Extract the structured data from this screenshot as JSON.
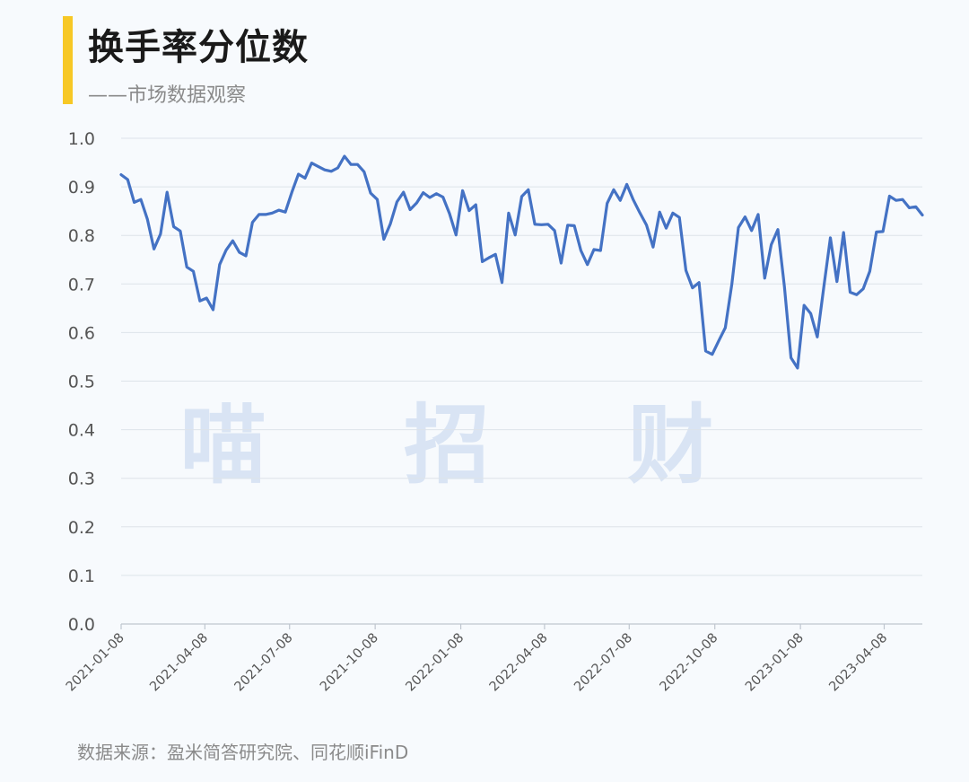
{
  "header": {
    "title": "换手率分位数",
    "subtitle": "——市场数据观察"
  },
  "footer": {
    "source": "数据来源：盈米简答研究院、同花顺iFinD"
  },
  "watermark": "喵 招 财",
  "colors": {
    "accent": "#f7c825",
    "line": "#4472c4",
    "grid": "#dde3ea",
    "axis_text": "#555555",
    "watermark": "#d9e4f4"
  },
  "chart_data": {
    "type": "line",
    "title": "换手率分位数",
    "ylim": [
      0,
      1.0
    ],
    "yticks": [
      "0.0",
      "0.1",
      "0.2",
      "0.3",
      "0.4",
      "0.5",
      "0.6",
      "0.7",
      "0.8",
      "0.9",
      "1.0"
    ],
    "xticks": [
      "2021-01-08",
      "2021-04-08",
      "2021-07-08",
      "2021-10-08",
      "2022-01-08",
      "2022-04-08",
      "2022-07-08",
      "2022-10-08",
      "2023-01-08",
      "2023-04-08"
    ],
    "x_range": [
      "2021-01-08",
      "2023-05-19"
    ],
    "grid": "horizontal",
    "legend": "none",
    "series": [
      {
        "values": [
          0.925,
          0.915,
          0.868,
          0.874,
          0.833,
          0.772,
          0.803,
          0.889,
          0.818,
          0.809,
          0.735,
          0.726,
          0.665,
          0.671,
          0.647,
          0.74,
          0.77,
          0.789,
          0.765,
          0.758,
          0.827,
          0.843,
          0.843,
          0.846,
          0.852,
          0.848,
          0.889,
          0.926,
          0.918,
          0.949,
          0.942,
          0.935,
          0.932,
          0.939,
          0.963,
          0.946,
          0.946,
          0.931,
          0.887,
          0.874,
          0.792,
          0.824,
          0.869,
          0.889,
          0.853,
          0.867,
          0.888,
          0.878,
          0.886,
          0.879,
          0.845,
          0.801,
          0.892,
          0.851,
          0.863,
          0.746,
          0.754,
          0.761,
          0.703,
          0.846,
          0.801,
          0.88,
          0.894,
          0.823,
          0.822,
          0.823,
          0.81,
          0.743,
          0.821,
          0.82,
          0.769,
          0.74,
          0.771,
          0.769,
          0.866,
          0.894,
          0.872,
          0.905,
          0.873,
          0.846,
          0.821,
          0.776,
          0.848,
          0.815,
          0.846,
          0.837,
          0.728,
          0.692,
          0.703,
          0.562,
          0.555,
          0.583,
          0.61,
          0.7,
          0.816,
          0.838,
          0.81,
          0.843,
          0.712,
          0.781,
          0.812,
          0.694,
          0.548,
          0.527,
          0.656,
          0.639,
          0.591,
          0.694,
          0.795,
          0.705,
          0.806,
          0.683,
          0.678,
          0.69,
          0.726,
          0.807,
          0.808,
          0.881,
          0.872,
          0.874,
          0.857,
          0.859,
          0.842
        ]
      }
    ]
  }
}
